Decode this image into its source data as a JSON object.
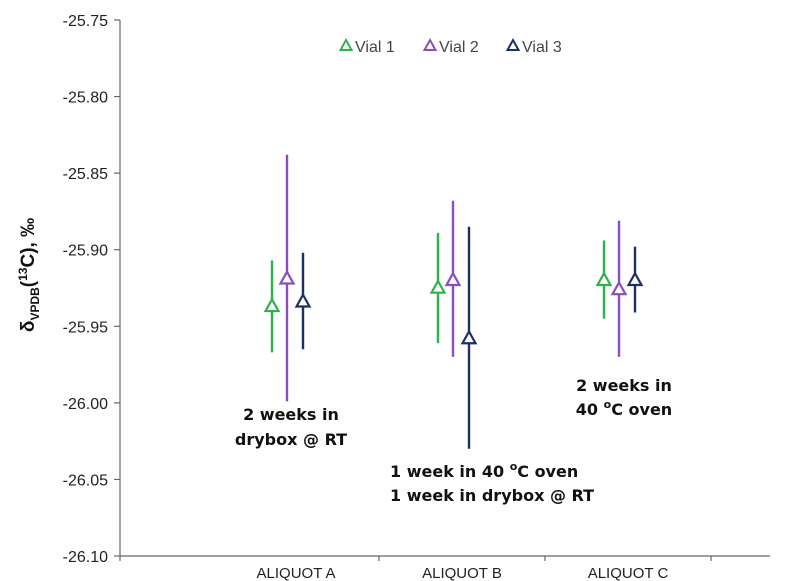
{
  "chart_data": {
    "type": "scatter",
    "ylabel": {
      "pre": "δ",
      "sub": "VPDB",
      "mid": "(",
      "sup": "13",
      "post": "C), ‰"
    },
    "ylim": [
      -26.1,
      -25.75
    ],
    "yticks": [
      -25.75,
      -25.8,
      -25.85,
      -25.9,
      -25.95,
      -26.0,
      -26.05,
      -26.1
    ],
    "ytick_labels": [
      "-25.75",
      "-25.80",
      "-25.85",
      "-25.90",
      "-25.95",
      "-26.00",
      "-26.05",
      "-26.10"
    ],
    "categories": [
      "ALIQUOT A",
      "ALIQUOT B",
      "ALIQUOT C"
    ],
    "grid": false,
    "legend_position": "top-center",
    "marker": "open-triangle",
    "series": [
      {
        "name": "Vial 1",
        "color": "#2db34a",
        "values": [
          -25.937,
          -25.925,
          -25.92
        ],
        "err_low": [
          -25.967,
          -25.961,
          -25.945
        ],
        "err_high": [
          -25.907,
          -25.889,
          -25.894
        ]
      },
      {
        "name": "Vial 2",
        "color": "#8a4dbb",
        "values": [
          -25.919,
          -25.92,
          -25.926
        ],
        "err_low": [
          -25.999,
          -25.97,
          -25.97
        ],
        "err_high": [
          -25.838,
          -25.868,
          -25.881
        ]
      },
      {
        "name": "Vial 3",
        "color": "#1c2f66",
        "values": [
          -25.934,
          -25.958,
          -25.92
        ],
        "err_low": [
          -25.965,
          -26.03,
          -25.941
        ],
        "err_high": [
          -25.902,
          -25.885,
          -25.898
        ]
      }
    ],
    "annotations": [
      {
        "category": "ALIQUOT A",
        "lines": [
          "2 weeks in",
          "drybox @ RT"
        ]
      },
      {
        "category": "ALIQUOT B",
        "lines": [
          "1 week in 40 ",
          "1 week in drybox @ RT"
        ],
        "sup": "o",
        "sup_after": "C oven"
      },
      {
        "category": "ALIQUOT C",
        "lines": [
          "2 weeks in",
          "40 "
        ],
        "sup": "o",
        "sup_after": "C oven"
      }
    ]
  }
}
